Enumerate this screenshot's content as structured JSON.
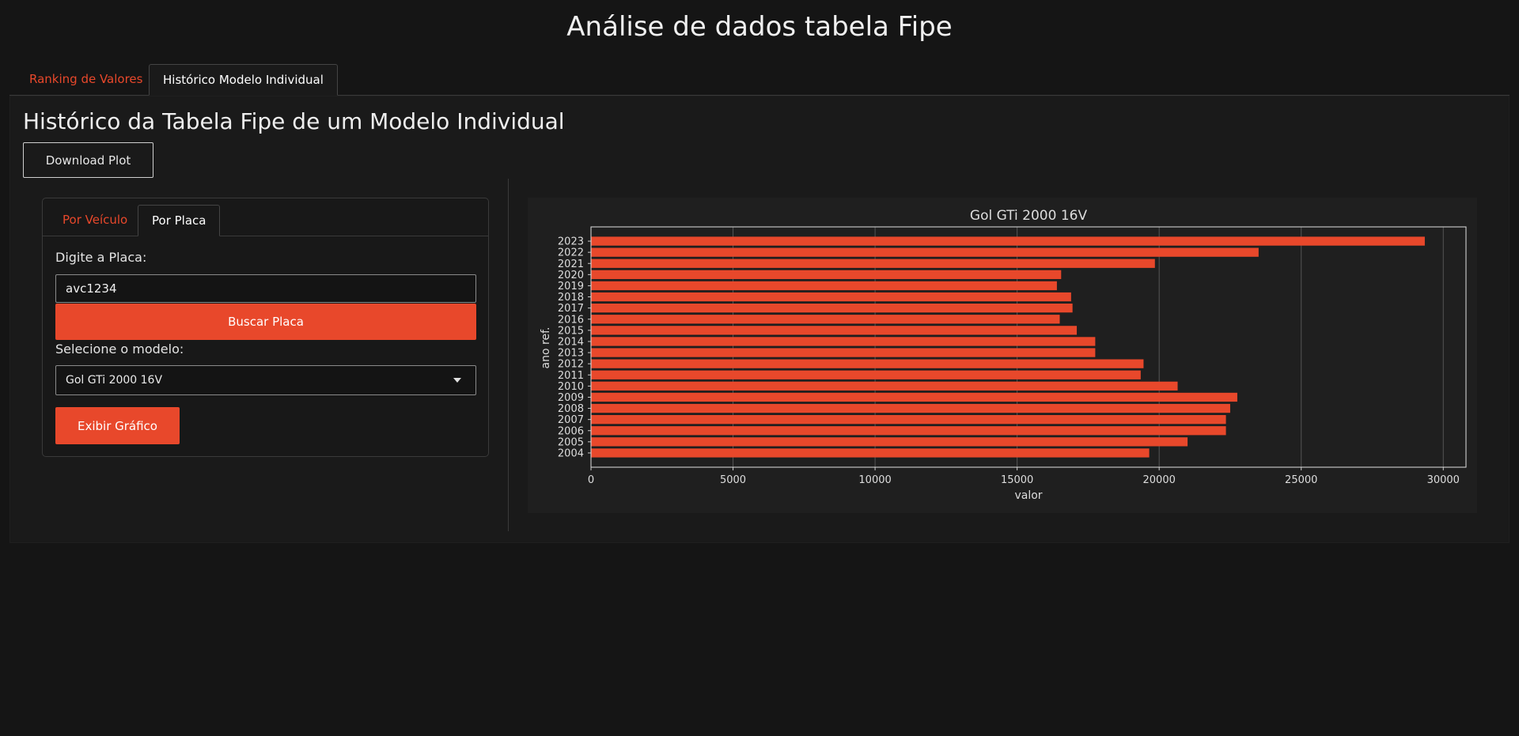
{
  "app": {
    "title": "Análise de dados tabela Fipe"
  },
  "top_tabs": [
    {
      "label": "Ranking de Valores",
      "active": false
    },
    {
      "label": "Histórico Modelo Individual",
      "active": true
    }
  ],
  "section": {
    "title": "Histórico da Tabela Fipe de um Modelo Individual"
  },
  "toolbar": {
    "download_label": "Download Plot"
  },
  "sidebar": {
    "tabs": [
      {
        "label": "Por Veículo",
        "active": false
      },
      {
        "label": "Por Placa",
        "active": true
      }
    ],
    "plate_label": "Digite a Placa:",
    "plate_value": "avc1234",
    "search_button": "Buscar Placa",
    "model_label": "Selecione o modelo:",
    "model_selected": "Gol GTi 2000 16V",
    "show_button": "Exibir Gráfico"
  },
  "colors": {
    "accent": "#e8482b",
    "background": "#151515",
    "plot_background": "#1f1f1f"
  },
  "chart_data": {
    "type": "bar",
    "orientation": "horizontal",
    "title": "Gol GTi 2000 16V",
    "xlabel": "valor",
    "ylabel": "ano ref.",
    "categories": [
      "2004",
      "2005",
      "2006",
      "2007",
      "2008",
      "2009",
      "2010",
      "2011",
      "2012",
      "2013",
      "2014",
      "2015",
      "2016",
      "2017",
      "2018",
      "2019",
      "2020",
      "2021",
      "2022",
      "2023"
    ],
    "values": [
      19650,
      21000,
      22350,
      22350,
      22500,
      22750,
      20650,
      19350,
      19450,
      17750,
      17750,
      17100,
      16500,
      16950,
      16900,
      16400,
      16550,
      19850,
      23500,
      29350
    ],
    "xlim": [
      0,
      30800
    ],
    "xticks": [
      0,
      5000,
      10000,
      15000,
      20000,
      25000,
      30000
    ],
    "grid": "vertical",
    "bar_color": "#e8482b"
  }
}
